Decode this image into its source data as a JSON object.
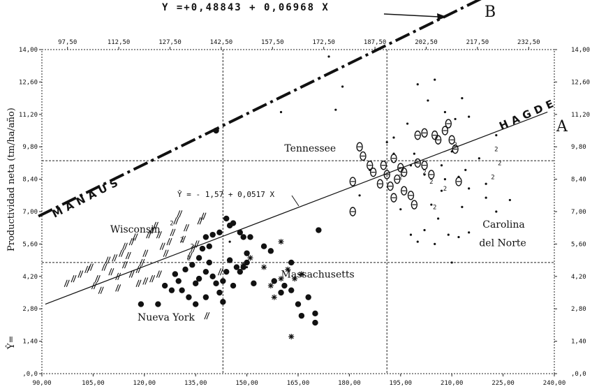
{
  "chart_data": {
    "type": "scatter",
    "title": "",
    "xlabel": "",
    "ylabel": "Productividad neta (tm/ha/año)",
    "ylabel_prefix": "Ŷ=",
    "xlim": [
      90,
      240
    ],
    "ylim": [
      0,
      14
    ],
    "x_ticks_bottom": [
      "90,00",
      "105,00",
      "120,00",
      "135,00",
      "150,00",
      "165,00",
      "180,00",
      "195,00",
      "210,00",
      "225,00",
      "240,00"
    ],
    "x_ticks_bottom_values": [
      90,
      105,
      120,
      135,
      150,
      165,
      180,
      195,
      210,
      225,
      240
    ],
    "x_ticks_top": [
      "97,50",
      "112,50",
      "127,50",
      "142,50",
      "157,50",
      "172,50",
      "187,50",
      "202,50",
      "217,50",
      "232,50"
    ],
    "x_ticks_top_values": [
      97.5,
      112.5,
      127.5,
      142.5,
      157.5,
      172.5,
      187.5,
      202.5,
      217.5,
      232.5
    ],
    "y_ticks": [
      ",0,0",
      "1,40",
      "2,80",
      "4,20",
      "5,60",
      "7,00",
      "8,40",
      "9,80",
      "11,20",
      "12,60",
      "14,00"
    ],
    "y_ticks_values": [
      0,
      1.4,
      2.8,
      4.2,
      5.6,
      7.0,
      8.4,
      9.8,
      11.2,
      12.6,
      14.0
    ],
    "guides": {
      "x": [
        143,
        191
      ],
      "y": [
        4.8,
        9.2
      ]
    },
    "equations": {
      "top": "Y =+0,48843 + 0,06968 X",
      "middle": "Ŷ = - 1,57 + 0,0517 X"
    },
    "lines": [
      {
        "name": "A",
        "label": "HAGDE",
        "style": "solid",
        "from": [
          91,
          3.0
        ],
        "to": [
          238,
          11.3
        ]
      },
      {
        "name": "B",
        "label": "MANAUS",
        "style": "dashdot",
        "from": [
          89,
          6.8
        ],
        "to": [
          220,
          16.3
        ]
      }
    ],
    "region_labels": [
      {
        "text": "Wisconsin",
        "x": 110,
        "y": 6.1
      },
      {
        "text": "Nueva York",
        "x": 118,
        "y": 2.3
      },
      {
        "text": "Tennessee",
        "x": 161,
        "y": 9.6
      },
      {
        "text": "Massachusetts",
        "x": 160,
        "y": 4.15
      },
      {
        "text": "Carolina",
        "x": 219,
        "y": 6.3
      },
      {
        "text": "del Norte",
        "x": 218,
        "y": 5.5
      }
    ],
    "series": [
      {
        "marker": "filled-circle",
        "points": [
          [
            141,
            10.5
          ],
          [
            144,
            6.7
          ],
          [
            145,
            6.4
          ],
          [
            146,
            6.5
          ],
          [
            148,
            6.1
          ],
          [
            149,
            5.9
          ],
          [
            150,
            5.2
          ],
          [
            151,
            5.9
          ],
          [
            155,
            5.5
          ],
          [
            157,
            5.3
          ],
          [
            163,
            4.8
          ],
          [
            171,
            6.2
          ],
          [
            142,
            6.1
          ],
          [
            140,
            6.0
          ],
          [
            138,
            5.9
          ],
          [
            137,
            5.4
          ],
          [
            139,
            5.5
          ],
          [
            136,
            5.0
          ],
          [
            134,
            4.7
          ],
          [
            132,
            4.5
          ],
          [
            130,
            4.0
          ],
          [
            129,
            4.3
          ],
          [
            128,
            3.6
          ],
          [
            131,
            3.6
          ],
          [
            133,
            3.3
          ],
          [
            135,
            3.9
          ],
          [
            136,
            4.1
          ],
          [
            138,
            4.4
          ],
          [
            139,
            4.8
          ],
          [
            140,
            4.2
          ],
          [
            141,
            3.9
          ],
          [
            142,
            3.5
          ],
          [
            143,
            4.0
          ],
          [
            144,
            4.4
          ],
          [
            145,
            4.9
          ],
          [
            146,
            3.8
          ],
          [
            147,
            4.6
          ],
          [
            148,
            4.4
          ],
          [
            149,
            4.6
          ],
          [
            150,
            4.8
          ],
          [
            152,
            3.9
          ],
          [
            143,
            3.1
          ],
          [
            138,
            3.3
          ],
          [
            135,
            3.0
          ],
          [
            126,
            3.8
          ],
          [
            124,
            3.0
          ],
          [
            119,
            3.0
          ],
          [
            158,
            4.0
          ],
          [
            161,
            3.8
          ],
          [
            163,
            3.6
          ],
          [
            165,
            3.0
          ],
          [
            166,
            2.5
          ],
          [
            168,
            3.3
          ],
          [
            170,
            2.6
          ],
          [
            170,
            2.2
          ],
          [
            160,
            3.5
          ]
        ]
      },
      {
        "marker": "small-dot",
        "points": [
          [
            174,
            13.7
          ],
          [
            178,
            12.4
          ],
          [
            176,
            11.4
          ],
          [
            200,
            12.5
          ],
          [
            205,
            12.7
          ],
          [
            203,
            11.8
          ],
          [
            208,
            11.3
          ],
          [
            211,
            11.0
          ],
          [
            213,
            11.9
          ],
          [
            215,
            11.1
          ],
          [
            197,
            10.8
          ],
          [
            193,
            10.2
          ],
          [
            199,
            9.5
          ],
          [
            207,
            9.0
          ],
          [
            210,
            9.6
          ],
          [
            212,
            8.5
          ],
          [
            215,
            8.0
          ],
          [
            218,
            9.3
          ],
          [
            220,
            8.2
          ],
          [
            223,
            7.0
          ],
          [
            204,
            7.3
          ],
          [
            202,
            6.2
          ],
          [
            206,
            6.7
          ],
          [
            209,
            6.0
          ],
          [
            212,
            5.9
          ],
          [
            215,
            6.1
          ],
          [
            198,
            6.0
          ],
          [
            200,
            5.7
          ],
          [
            205,
            5.6
          ],
          [
            210,
            4.8
          ],
          [
            220,
            7.6
          ],
          [
            223,
            10.3
          ],
          [
            227,
            7.5
          ],
          [
            191,
            10.0
          ],
          [
            193,
            9.5
          ],
          [
            207,
            7.9
          ],
          [
            202,
            8.6
          ],
          [
            198,
            9.0
          ],
          [
            214,
            8.8
          ],
          [
            208,
            8.4
          ],
          [
            213,
            7.2
          ],
          [
            195,
            7.1
          ],
          [
            186,
            8.8
          ],
          [
            160,
            11.3
          ],
          [
            145,
            5.7
          ],
          [
            150,
            4.6
          ],
          [
            183,
            7.7
          ]
        ]
      },
      {
        "marker": "open-theta",
        "points": [
          [
            184,
            9.4
          ],
          [
            186,
            9.0
          ],
          [
            181,
            8.3
          ],
          [
            187,
            8.7
          ],
          [
            189,
            8.2
          ],
          [
            190,
            9.0
          ],
          [
            191,
            8.6
          ],
          [
            192,
            8.1
          ],
          [
            193,
            7.6
          ],
          [
            194,
            8.4
          ],
          [
            195,
            8.9
          ],
          [
            196,
            7.9
          ],
          [
            198,
            7.7
          ],
          [
            200,
            9.1
          ],
          [
            202,
            9.0
          ],
          [
            204,
            8.6
          ],
          [
            199,
            7.3
          ],
          [
            200,
            10.3
          ],
          [
            202,
            10.4
          ],
          [
            205,
            10.3
          ],
          [
            206,
            10.1
          ],
          [
            208,
            10.5
          ],
          [
            209,
            10.8
          ],
          [
            210,
            10.1
          ],
          [
            211,
            9.7
          ],
          [
            212,
            8.3
          ],
          [
            196,
            8.7
          ],
          [
            193,
            9.3
          ],
          [
            181,
            7.0
          ],
          [
            183,
            9.8
          ]
        ]
      },
      {
        "marker": "slash",
        "points": [
          [
            97,
            3.9
          ],
          [
            99,
            4.1
          ],
          [
            101,
            4.3
          ],
          [
            103,
            4.5
          ],
          [
            104,
            4.6
          ],
          [
            106,
            4.1
          ],
          [
            108,
            4.6
          ],
          [
            109,
            4.9
          ],
          [
            111,
            5.0
          ],
          [
            113,
            5.2
          ],
          [
            114,
            5.5
          ],
          [
            115,
            5.1
          ],
          [
            116,
            5.7
          ],
          [
            117,
            5.9
          ],
          [
            118,
            4.5
          ],
          [
            119,
            4.8
          ],
          [
            120,
            5.2
          ],
          [
            121,
            6.0
          ],
          [
            122,
            6.2
          ],
          [
            123,
            6.4
          ],
          [
            124,
            6.0
          ],
          [
            125,
            5.5
          ],
          [
            126,
            5.2
          ],
          [
            127,
            5.7
          ],
          [
            128,
            6.1
          ],
          [
            129,
            6.6
          ],
          [
            130,
            6.9
          ],
          [
            131,
            5.8
          ],
          [
            132,
            6.3
          ],
          [
            133,
            5.1
          ],
          [
            134,
            5.4
          ],
          [
            135,
            5.6
          ],
          [
            136,
            6.6
          ],
          [
            137,
            6.8
          ],
          [
            110,
            4.4
          ],
          [
            112,
            4.2
          ],
          [
            114,
            4.7
          ],
          [
            116,
            4.3
          ],
          [
            118,
            3.9
          ],
          [
            120,
            4.0
          ],
          [
            122,
            4.1
          ],
          [
            124,
            4.3
          ],
          [
            112,
            3.7
          ],
          [
            107,
            3.6
          ],
          [
            105,
            3.8
          ],
          [
            142,
            4.4
          ],
          [
            138,
            2.5
          ]
        ]
      },
      {
        "marker": "asterisk",
        "points": [
          [
            149,
            4.7
          ],
          [
            151,
            5.0
          ],
          [
            155,
            4.6
          ],
          [
            157,
            3.8
          ],
          [
            160,
            4.1
          ],
          [
            162,
            4.5
          ],
          [
            164,
            4.1
          ],
          [
            166,
            4.3
          ],
          [
            160,
            5.7
          ],
          [
            163,
            1.6
          ],
          [
            158,
            3.3
          ]
        ]
      },
      {
        "marker": "numeral-2",
        "labels": "2",
        "points": [
          [
            128,
            6.5
          ],
          [
            131,
            5.8
          ],
          [
            134,
            5.5
          ],
          [
            133,
            5.0
          ],
          [
            195,
            8.5
          ],
          [
            202,
            8.7
          ],
          [
            205,
            7.2
          ],
          [
            211,
            9.9
          ],
          [
            222,
            8.5
          ],
          [
            223,
            9.7
          ],
          [
            224,
            9.1
          ],
          [
            208,
            8.0
          ],
          [
            204,
            8.3
          ]
        ]
      }
    ]
  }
}
